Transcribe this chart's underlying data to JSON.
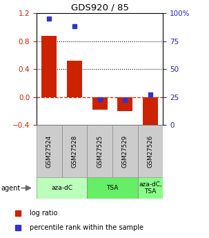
{
  "title": "GDS920 / 85",
  "samples": [
    "GSM27524",
    "GSM27528",
    "GSM27525",
    "GSM27529",
    "GSM27526"
  ],
  "log_ratio": [
    0.87,
    0.52,
    -0.18,
    -0.2,
    -0.45
  ],
  "percentile_rank": [
    95,
    88,
    23,
    22,
    27
  ],
  "ylim_left": [
    -0.4,
    1.2
  ],
  "ylim_right": [
    0,
    100
  ],
  "yticks_left": [
    -0.4,
    0.0,
    0.4,
    0.8,
    1.2
  ],
  "yticks_right": [
    0,
    25,
    50,
    75,
    100
  ],
  "hlines": [
    0.4,
    0.8
  ],
  "bar_color": "#cc2200",
  "dot_color": "#3333cc",
  "zero_line_color": "#cc2200",
  "agent_groups": [
    {
      "label": "aza-dC",
      "start": 0,
      "end": 2,
      "color": "#bbffbb"
    },
    {
      "label": "TSA",
      "start": 2,
      "end": 4,
      "color": "#66ee66"
    },
    {
      "label": "aza-dC,\nTSA",
      "start": 4,
      "end": 5,
      "color": "#88ff88"
    }
  ],
  "legend_items": [
    {
      "label": "log ratio",
      "color": "#cc2200"
    },
    {
      "label": "percentile rank within the sample",
      "color": "#3333cc"
    }
  ]
}
